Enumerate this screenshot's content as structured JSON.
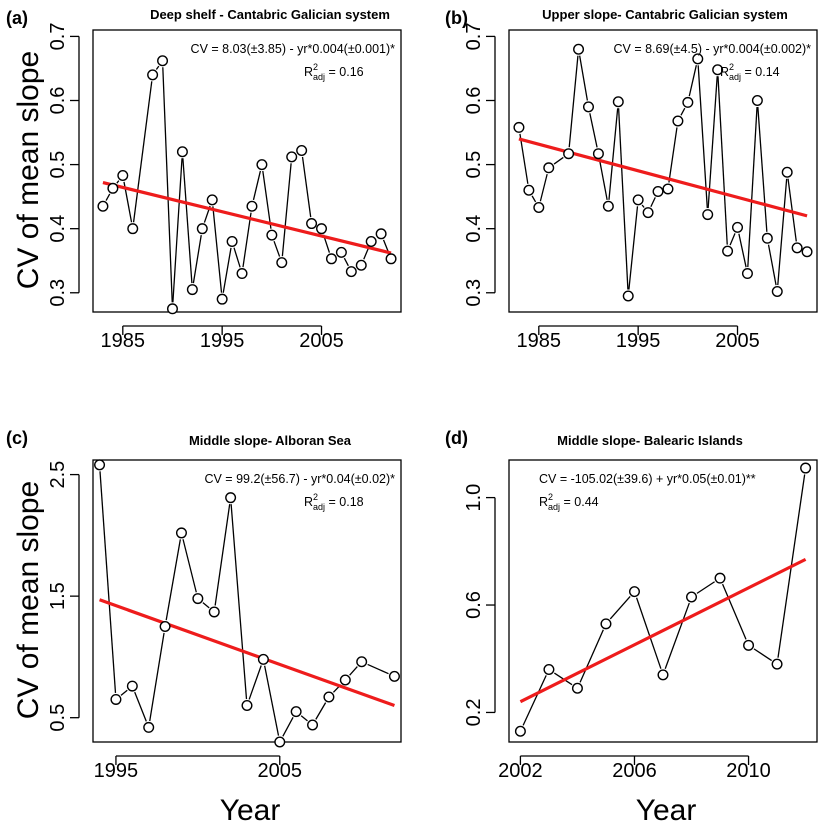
{
  "figure": {
    "ylabel": "CV of mean slope",
    "xlabel": "Year"
  },
  "chart_data": [
    {
      "type": "line",
      "panel": "(a)",
      "title": "Deep shelf - Cantabric Galician system",
      "equation": "CV = 8.03(±3.85) - yr*0.004(±0.001)*",
      "r2_label": "R",
      "r2_sup": "2",
      "r2_sub": "adj",
      "r2_value": " = 0.16",
      "xlim": [
        1982,
        2013
      ],
      "ylim": [
        0.27,
        0.71
      ],
      "xticks": [
        1985,
        1995,
        2005
      ],
      "xtick_labels": [
        "1985",
        "1995",
        "2005"
      ],
      "yticks": [
        0.3,
        0.4,
        0.5,
        0.6,
        0.7
      ],
      "ytick_labels": [
        "0.3",
        "0.4",
        "0.5",
        "0.6",
        "0.7"
      ],
      "x": [
        1983,
        1984,
        1985,
        1986,
        1988,
        1989,
        1990,
        1991,
        1992,
        1993,
        1994,
        1995,
        1996,
        1997,
        1998,
        1999,
        2000,
        2001,
        2002,
        2003,
        2004,
        2005,
        2006,
        2007,
        2008,
        2009,
        2010,
        2011,
        2012
      ],
      "y": [
        0.435,
        0.463,
        0.483,
        0.4,
        0.64,
        0.662,
        0.275,
        0.52,
        0.305,
        0.4,
        0.445,
        0.29,
        0.38,
        0.33,
        0.435,
        0.5,
        0.39,
        0.347,
        0.512,
        0.522,
        0.408,
        0.4,
        0.353,
        0.363,
        0.333,
        0.343,
        0.38,
        0.392,
        0.353
      ],
      "trend": {
        "x": [
          1983,
          2012
        ],
        "y": [
          0.472,
          0.362
        ],
        "color": "#ee1c1c"
      }
    },
    {
      "type": "line",
      "panel": "(b)",
      "title": "Upper slope- Cantabric Galician system",
      "equation": "CV = 8.69(±4.5) - yr*0.004(±0.002)*",
      "r2_label": "R",
      "r2_sup": "2",
      "r2_sub": "adj",
      "r2_value": " = 0.14",
      "xlim": [
        1982,
        2013
      ],
      "ylim": [
        0.27,
        0.71
      ],
      "xticks": [
        1985,
        1995,
        2005
      ],
      "xtick_labels": [
        "1985",
        "1995",
        "2005"
      ],
      "yticks": [
        0.3,
        0.4,
        0.5,
        0.6,
        0.7
      ],
      "ytick_labels": [
        "0.3",
        "0.4",
        "0.5",
        "0.6",
        "0.7"
      ],
      "x": [
        1983,
        1984,
        1985,
        1986,
        1988,
        1989,
        1990,
        1991,
        1992,
        1993,
        1994,
        1995,
        1996,
        1997,
        1998,
        1999,
        2000,
        2001,
        2002,
        2003,
        2004,
        2005,
        2006,
        2007,
        2008,
        2009,
        2010,
        2011,
        2012
      ],
      "y": [
        0.558,
        0.46,
        0.433,
        0.495,
        0.517,
        0.68,
        0.59,
        0.517,
        0.435,
        0.598,
        0.295,
        0.445,
        0.425,
        0.458,
        0.462,
        0.568,
        0.597,
        0.665,
        0.422,
        0.648,
        0.365,
        0.402,
        0.33,
        0.6,
        0.385,
        0.302,
        0.488,
        0.37,
        0.364
      ],
      "trend": {
        "x": [
          1983,
          2012
        ],
        "y": [
          0.54,
          0.42
        ],
        "color": "#ee1c1c"
      }
    },
    {
      "type": "line",
      "panel": "(c)",
      "title": "Middle slope- Alboran Sea",
      "equation": "CV = 99.2(±56.7) - yr*0.04(±0.02)*",
      "r2_label": "R",
      "r2_sup": "2",
      "r2_sub": "adj",
      "r2_value": " = 0.18",
      "xlim": [
        1993.6,
        2012.4
      ],
      "ylim": [
        0.3,
        2.62
      ],
      "xticks": [
        1995,
        2005
      ],
      "xtick_labels": [
        "1995",
        "2005"
      ],
      "yticks": [
        0.5,
        1.5,
        2.5
      ],
      "ytick_labels": [
        "0.5",
        "1.5",
        "2.5"
      ],
      "x": [
        1994,
        1995,
        1996,
        1997,
        1998,
        1999,
        2000,
        2001,
        2002,
        2003,
        2004,
        2005,
        2006,
        2007,
        2008,
        2009,
        2010,
        2012
      ],
      "y": [
        2.58,
        0.65,
        0.76,
        0.42,
        1.25,
        2.02,
        1.48,
        1.37,
        2.31,
        0.6,
        0.98,
        0.3,
        0.55,
        0.44,
        0.67,
        0.81,
        0.96,
        0.84
      ],
      "trend": {
        "x": [
          1994,
          2012
        ],
        "y": [
          1.47,
          0.6
        ],
        "color": "#ee1c1c"
      }
    },
    {
      "type": "line",
      "panel": "(d)",
      "title": "Middle slope- Balearic Islands",
      "equation": "CV = -105.02(±39.6) + yr*0.05(±0.01)**",
      "r2_label": "R",
      "r2_sup": "2",
      "r2_sub": "adj",
      "r2_value": " = 0.44",
      "xlim": [
        2001.6,
        2012.4
      ],
      "ylim": [
        0.09,
        1.14
      ],
      "xticks": [
        2002,
        2006,
        2010
      ],
      "xtick_labels": [
        "2002",
        "2006",
        "2010"
      ],
      "yticks": [
        0.2,
        0.6,
        1.0
      ],
      "ytick_labels": [
        "0.2",
        "0.6",
        "1.0"
      ],
      "x": [
        2002,
        2003,
        2004,
        2005,
        2006,
        2007,
        2008,
        2009,
        2010,
        2011,
        2012
      ],
      "y": [
        0.13,
        0.36,
        0.29,
        0.53,
        0.65,
        0.34,
        0.63,
        0.7,
        0.45,
        0.38,
        1.11
      ],
      "trend": {
        "x": [
          2002,
          2012
        ],
        "y": [
          0.24,
          0.77
        ],
        "color": "#ee1c1c"
      }
    }
  ]
}
